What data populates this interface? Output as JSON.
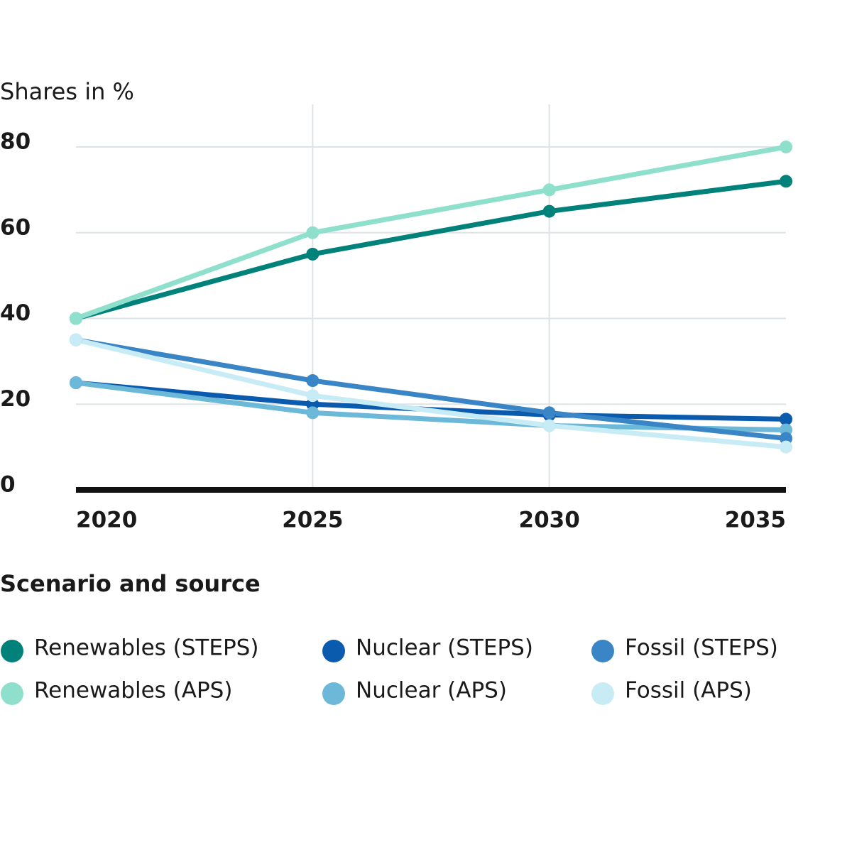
{
  "chart_data": {
    "type": "line",
    "y_label": "Shares in %",
    "x": [
      2020,
      2025,
      2030,
      2035
    ],
    "xlim": [
      2020,
      2035
    ],
    "xticks": [
      2020,
      2025,
      2030,
      2035
    ],
    "ylim": [
      0,
      80
    ],
    "yticks": [
      0,
      20,
      40,
      60,
      80
    ],
    "grid": true,
    "legend_title": "Scenario and source",
    "series": [
      {
        "name": "Renewables (STEPS)",
        "color": "#00827a",
        "values": [
          40,
          55,
          65,
          72
        ]
      },
      {
        "name": "Renewables (APS)",
        "color": "#8ee0cc",
        "values": [
          40,
          60,
          70,
          80
        ]
      },
      {
        "name": "Nuclear (STEPS)",
        "color": "#0a5aad",
        "values": [
          25,
          20,
          17.5,
          16.5
        ]
      },
      {
        "name": "Nuclear (APS)",
        "color": "#6bb8d9",
        "values": [
          25,
          18,
          15,
          14
        ]
      },
      {
        "name": "Fossil (STEPS)",
        "color": "#3a85c5",
        "values": [
          35,
          25.5,
          18,
          12
        ]
      },
      {
        "name": "Fossil (APS)",
        "color": "#c8ecf5",
        "values": [
          35,
          22,
          15,
          10
        ]
      }
    ]
  }
}
